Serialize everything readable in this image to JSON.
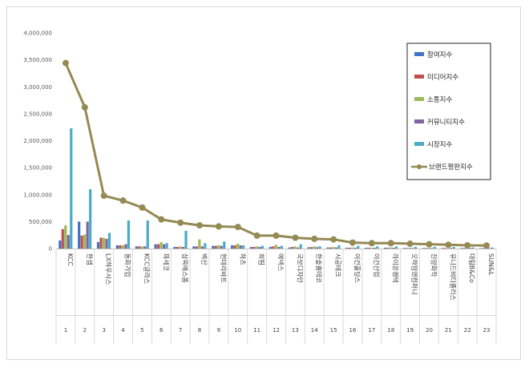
{
  "chart_data": {
    "type": "bar+line",
    "ylim": [
      0,
      4000000
    ],
    "yticks": [
      "0",
      "500,000",
      "1,000,000",
      "1,500,000",
      "2,000,000",
      "2,500,000",
      "3,000,000",
      "3,500,000",
      "4,000,000"
    ],
    "categories": [
      "KCC",
      "한샘",
      "LX하우시스",
      "동화기업",
      "KCC글라스",
      "파세코",
      "삼목에스폼",
      "벽산",
      "현대리바트",
      "하츠",
      "희림",
      "에넥스",
      "국보디자인",
      "한솔홈데코",
      "시공테크",
      "이건홀딩스",
      "이건산업",
      "라이온켐텍",
      "오하임앤컴퍼니",
      "진양화학",
      "유니드비티플러스",
      "대림B&Co",
      "SUN&L"
    ],
    "indices": [
      "1",
      "2",
      "3",
      "4",
      "5",
      "6",
      "7",
      "8",
      "9",
      "10",
      "11",
      "12",
      "13",
      "14",
      "15",
      "16",
      "17",
      "18",
      "19",
      "20",
      "21",
      "22",
      "23"
    ],
    "series": [
      {
        "name": "참여지수",
        "color": "#4472c4",
        "values": [
          150000,
          500000,
          120000,
          60000,
          40000,
          80000,
          30000,
          40000,
          50000,
          60000,
          30000,
          30000,
          20000,
          25000,
          20000,
          15000,
          15000,
          15000,
          10000,
          10000,
          10000,
          10000,
          8000
        ]
      },
      {
        "name": "미디어지수",
        "color": "#c0504d",
        "values": [
          360000,
          240000,
          200000,
          60000,
          40000,
          80000,
          30000,
          40000,
          50000,
          60000,
          30000,
          40000,
          30000,
          25000,
          20000,
          15000,
          15000,
          15000,
          10000,
          10000,
          10000,
          10000,
          8000
        ]
      },
      {
        "name": "소통지수",
        "color": "#9bbb59",
        "values": [
          430000,
          260000,
          200000,
          60000,
          40000,
          120000,
          40000,
          170000,
          60000,
          90000,
          40000,
          70000,
          40000,
          40000,
          30000,
          20000,
          15000,
          20000,
          15000,
          15000,
          10000,
          10000,
          8000
        ]
      },
      {
        "name": "커뮤니티지수",
        "color": "#8064a2",
        "values": [
          250000,
          500000,
          180000,
          80000,
          40000,
          80000,
          30000,
          40000,
          50000,
          60000,
          30000,
          30000,
          20000,
          25000,
          20000,
          15000,
          15000,
          15000,
          10000,
          10000,
          10000,
          10000,
          8000
        ]
      },
      {
        "name": "시장지수",
        "color": "#4bacc6",
        "values": [
          2230000,
          1100000,
          290000,
          520000,
          520000,
          100000,
          330000,
          100000,
          130000,
          60000,
          50000,
          50000,
          80000,
          40000,
          60000,
          50000,
          40000,
          40000,
          30000,
          30000,
          30000,
          20000,
          20000
        ]
      }
    ],
    "line": {
      "name": "브랜드평판지수",
      "color": "#948a54",
      "values": [
        3440000,
        2620000,
        980000,
        890000,
        760000,
        540000,
        480000,
        430000,
        410000,
        400000,
        240000,
        240000,
        200000,
        180000,
        170000,
        110000,
        100000,
        100000,
        90000,
        80000,
        70000,
        60000,
        55000
      ]
    },
    "legend_position": "right",
    "grid": false
  }
}
